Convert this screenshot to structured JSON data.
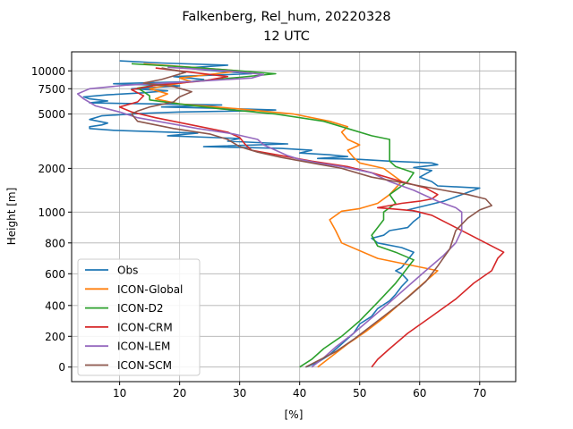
{
  "chart_data": {
    "type": "line",
    "title": "Falkenberg, Rel_hum, 20220328",
    "subtitle": "12 UTC",
    "xlabel": "[%]",
    "ylabel": "Height [m]",
    "xlim": [
      2,
      76
    ],
    "x_ticks": [
      10,
      20,
      30,
      40,
      50,
      60,
      70
    ],
    "y_ticks": [
      {
        "label": "0",
        "value": 0
      },
      {
        "label": "200",
        "value": 200
      },
      {
        "label": "400",
        "value": 400
      },
      {
        "label": "600",
        "value": 600
      },
      {
        "label": "800",
        "value": 800
      },
      {
        "label": "1000",
        "value": 1000
      },
      {
        "label": "2000",
        "value": 2000
      },
      {
        "label": "5000",
        "value": 5000
      },
      {
        "label": "7500",
        "value": 7500
      },
      {
        "label": "10000",
        "value": 10000
      }
    ],
    "grid": true,
    "legend_position": "lower-left",
    "series": [
      {
        "name": "Obs",
        "color": "#1f77b4",
        "points": [
          [
            41,
            0
          ],
          [
            43,
            30
          ],
          [
            45,
            80
          ],
          [
            47,
            150
          ],
          [
            49,
            220
          ],
          [
            50,
            280
          ],
          [
            52,
            330
          ],
          [
            53,
            380
          ],
          [
            55,
            430
          ],
          [
            56,
            470
          ],
          [
            57,
            520
          ],
          [
            58,
            560
          ],
          [
            57,
            600
          ],
          [
            56,
            620
          ],
          [
            57,
            640
          ],
          [
            58,
            690
          ],
          [
            59,
            740
          ],
          [
            57,
            770
          ],
          [
            53,
            800
          ],
          [
            52,
            830
          ],
          [
            54,
            850
          ],
          [
            55,
            880
          ],
          [
            58,
            900
          ],
          [
            59,
            940
          ],
          [
            60,
            970
          ],
          [
            60,
            1000
          ],
          [
            58,
            1050
          ],
          [
            61,
            1150
          ],
          [
            64,
            1250
          ],
          [
            66,
            1350
          ],
          [
            68,
            1450
          ],
          [
            70,
            1550
          ],
          [
            63,
            1600
          ],
          [
            62,
            1700
          ],
          [
            60,
            1800
          ],
          [
            62,
            1950
          ],
          [
            59,
            2050
          ],
          [
            63,
            2200
          ],
          [
            62,
            2300
          ],
          [
            55,
            2400
          ],
          [
            50,
            2500
          ],
          [
            43,
            2550
          ],
          [
            48,
            2650
          ],
          [
            45,
            2750
          ],
          [
            40,
            2850
          ],
          [
            42,
            3000
          ],
          [
            37,
            3100
          ],
          [
            31,
            3150
          ],
          [
            24,
            3200
          ],
          [
            38,
            3350
          ],
          [
            28,
            3500
          ],
          [
            30,
            3650
          ],
          [
            18,
            3800
          ],
          [
            23,
            3950
          ],
          [
            9,
            4100
          ],
          [
            5,
            4200
          ],
          [
            5,
            4300
          ],
          [
            7,
            4400
          ],
          [
            8,
            4500
          ],
          [
            5,
            4700
          ],
          [
            7,
            4900
          ],
          [
            12,
            5000
          ],
          [
            15,
            5100
          ],
          [
            20,
            5200
          ],
          [
            30,
            5300
          ],
          [
            36,
            5400
          ],
          [
            28,
            5550
          ],
          [
            17,
            5700
          ],
          [
            27,
            5900
          ],
          [
            5,
            6100
          ],
          [
            8,
            6300
          ],
          [
            5,
            6500
          ],
          [
            4,
            6700
          ],
          [
            8,
            6900
          ],
          [
            14,
            7100
          ],
          [
            18,
            7300
          ],
          [
            12,
            7500
          ],
          [
            16,
            7700
          ],
          [
            20,
            7900
          ],
          [
            9,
            8200
          ],
          [
            22,
            8500
          ],
          [
            24,
            8800
          ],
          [
            19,
            9200
          ],
          [
            32,
            9600
          ],
          [
            26,
            10000
          ],
          [
            21,
            10400
          ],
          [
            28,
            10800
          ],
          [
            17,
            11100
          ],
          [
            10,
            11400
          ]
        ]
      },
      {
        "name": "ICON-Global",
        "color": "#ff7f0e",
        "points": [
          [
            43,
            0
          ],
          [
            45,
            60
          ],
          [
            48,
            150
          ],
          [
            51,
            230
          ],
          [
            54,
            320
          ],
          [
            57,
            420
          ],
          [
            60,
            520
          ],
          [
            63,
            620
          ],
          [
            53,
            700
          ],
          [
            47,
            800
          ],
          [
            46,
            880
          ],
          [
            45,
            950
          ],
          [
            47,
            1020
          ],
          [
            50,
            1080
          ],
          [
            53,
            1200
          ],
          [
            55,
            1400
          ],
          [
            57,
            1700
          ],
          [
            54,
            2000
          ],
          [
            50,
            2300
          ],
          [
            49,
            2600
          ],
          [
            48,
            3000
          ],
          [
            50,
            3300
          ],
          [
            48,
            3600
          ],
          [
            47,
            4000
          ],
          [
            48,
            4300
          ],
          [
            45,
            4600
          ],
          [
            39,
            5000
          ],
          [
            30,
            5500
          ],
          [
            20,
            6000
          ],
          [
            16,
            6500
          ],
          [
            18,
            7000
          ],
          [
            15,
            7500
          ],
          [
            18,
            8000
          ],
          [
            22,
            8500
          ],
          [
            20,
            9000
          ],
          [
            26,
            9600
          ],
          [
            30,
            10000
          ],
          [
            22,
            10500
          ],
          [
            14,
            11000
          ]
        ]
      },
      {
        "name": "ICON-D2",
        "color": "#2ca02c",
        "points": [
          [
            40,
            0
          ],
          [
            42,
            50
          ],
          [
            44,
            120
          ],
          [
            47,
            200
          ],
          [
            50,
            300
          ],
          [
            53,
            420
          ],
          [
            56,
            540
          ],
          [
            59,
            690
          ],
          [
            56,
            740
          ],
          [
            53,
            780
          ],
          [
            52,
            850
          ],
          [
            53,
            900
          ],
          [
            54,
            950
          ],
          [
            54,
            1000
          ],
          [
            55,
            1100
          ],
          [
            56,
            1200
          ],
          [
            55,
            1400
          ],
          [
            58,
            1700
          ],
          [
            59,
            1900
          ],
          [
            56,
            2100
          ],
          [
            55,
            2400
          ],
          [
            55,
            2800
          ],
          [
            55,
            3200
          ],
          [
            55,
            3600
          ],
          [
            52,
            3800
          ],
          [
            48,
            4200
          ],
          [
            44,
            4600
          ],
          [
            36,
            5000
          ],
          [
            27,
            5500
          ],
          [
            20,
            6000
          ],
          [
            15,
            6400
          ],
          [
            15,
            6800
          ],
          [
            14,
            7200
          ],
          [
            13,
            7600
          ],
          [
            16,
            8000
          ],
          [
            22,
            8500
          ],
          [
            30,
            9100
          ],
          [
            36,
            9600
          ],
          [
            30,
            10000
          ],
          [
            22,
            10500
          ],
          [
            12,
            11000
          ]
        ]
      },
      {
        "name": "ICON-CRM",
        "color": "#d62728",
        "points": [
          [
            52,
            0
          ],
          [
            53,
            50
          ],
          [
            55,
            120
          ],
          [
            58,
            220
          ],
          [
            62,
            330
          ],
          [
            66,
            440
          ],
          [
            69,
            540
          ],
          [
            72,
            620
          ],
          [
            73,
            700
          ],
          [
            74,
            740
          ],
          [
            71,
            800
          ],
          [
            68,
            860
          ],
          [
            65,
            920
          ],
          [
            62,
            980
          ],
          [
            59,
            1030
          ],
          [
            55,
            1080
          ],
          [
            53,
            1100
          ],
          [
            55,
            1150
          ],
          [
            57,
            1200
          ],
          [
            60,
            1250
          ],
          [
            62,
            1300
          ],
          [
            63,
            1400
          ],
          [
            61,
            1550
          ],
          [
            57,
            1700
          ],
          [
            52,
            1900
          ],
          [
            48,
            2100
          ],
          [
            42,
            2400
          ],
          [
            37,
            2700
          ],
          [
            32,
            3000
          ],
          [
            31,
            3300
          ],
          [
            30,
            3700
          ],
          [
            28,
            4000
          ],
          [
            22,
            4400
          ],
          [
            16,
            4800
          ],
          [
            12,
            5200
          ],
          [
            10,
            5700
          ],
          [
            13,
            6200
          ],
          [
            14,
            6800
          ],
          [
            12,
            7400
          ],
          [
            16,
            8000
          ],
          [
            24,
            8600
          ],
          [
            28,
            9200
          ],
          [
            22,
            9800
          ],
          [
            16,
            10400
          ]
        ]
      },
      {
        "name": "ICON-LEM",
        "color": "#9467bd",
        "points": [
          [
            42,
            0
          ],
          [
            44,
            60
          ],
          [
            46,
            130
          ],
          [
            49,
            220
          ],
          [
            52,
            320
          ],
          [
            55,
            420
          ],
          [
            58,
            520
          ],
          [
            61,
            620
          ],
          [
            64,
            720
          ],
          [
            66,
            800
          ],
          [
            67,
            880
          ],
          [
            67,
            940
          ],
          [
            67,
            1000
          ],
          [
            66,
            1100
          ],
          [
            63,
            1250
          ],
          [
            59,
            1500
          ],
          [
            55,
            1700
          ],
          [
            52,
            1900
          ],
          [
            47,
            2100
          ],
          [
            43,
            2300
          ],
          [
            40,
            2500
          ],
          [
            38,
            2700
          ],
          [
            36,
            3000
          ],
          [
            34,
            3300
          ],
          [
            33,
            3600
          ],
          [
            29,
            3900
          ],
          [
            23,
            4200
          ],
          [
            18,
            4500
          ],
          [
            13,
            4800
          ],
          [
            10,
            5200
          ],
          [
            6,
            5800
          ],
          [
            4,
            6500
          ],
          [
            3,
            7000
          ],
          [
            5,
            7500
          ],
          [
            11,
            8000
          ],
          [
            22,
            8500
          ],
          [
            32,
            9000
          ],
          [
            34,
            9500
          ],
          [
            28,
            10000
          ],
          [
            18,
            10500
          ]
        ]
      },
      {
        "name": "ICON-SCM",
        "color": "#8c564b",
        "points": [
          [
            41,
            0
          ],
          [
            43,
            40
          ],
          [
            46,
            100
          ],
          [
            49,
            180
          ],
          [
            52,
            270
          ],
          [
            55,
            360
          ],
          [
            58,
            450
          ],
          [
            61,
            550
          ],
          [
            63,
            650
          ],
          [
            65,
            760
          ],
          [
            66,
            880
          ],
          [
            68,
            960
          ],
          [
            70,
            1050
          ],
          [
            72,
            1150
          ],
          [
            71,
            1300
          ],
          [
            68,
            1400
          ],
          [
            64,
            1500
          ],
          [
            58,
            1650
          ],
          [
            52,
            1800
          ],
          [
            47,
            2000
          ],
          [
            42,
            2300
          ],
          [
            37,
            2600
          ],
          [
            33,
            2900
          ],
          [
            30,
            3200
          ],
          [
            28,
            3600
          ],
          [
            25,
            3900
          ],
          [
            19,
            4200
          ],
          [
            13,
            4600
          ],
          [
            12,
            5000
          ],
          [
            13,
            5300
          ],
          [
            15,
            5700
          ],
          [
            19,
            6200
          ],
          [
            20,
            6700
          ],
          [
            22,
            7200
          ],
          [
            19,
            7800
          ],
          [
            14,
            8300
          ],
          [
            17,
            8800
          ],
          [
            19,
            9300
          ],
          [
            21,
            9800
          ],
          [
            17,
            10400
          ]
        ]
      }
    ]
  }
}
